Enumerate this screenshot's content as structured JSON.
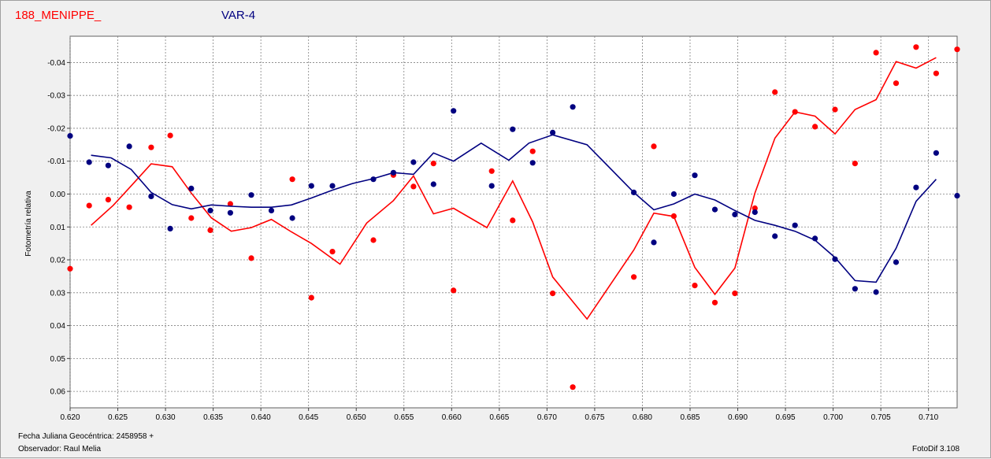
{
  "header": {
    "target_label": "188_MENIPPE_",
    "var_label": "VAR-4"
  },
  "footer": {
    "jd_label": "Fecha Juliana Geocéntrica: 2458958 +",
    "observer_label": "Observador: Raul Melia",
    "software_label": "FotoDif 3.108"
  },
  "colors": {
    "target": "#ff0000",
    "var": "#000080",
    "grid": "#808080"
  },
  "chart_data": {
    "type": "scatter",
    "ylabel": "Fotometría relativa",
    "xlim": [
      0.62,
      0.713
    ],
    "ylim": [
      -0.048,
      0.065
    ],
    "y_inverted": true,
    "grid": true,
    "x_ticks": [
      0.62,
      0.625,
      0.63,
      0.635,
      0.64,
      0.645,
      0.65,
      0.655,
      0.66,
      0.665,
      0.67,
      0.675,
      0.68,
      0.685,
      0.69,
      0.695,
      0.7,
      0.705,
      0.71
    ],
    "x_tick_labels": [
      "0.620",
      "0.625",
      "0.630",
      "0.635",
      "0.640",
      "0.645",
      "0.650",
      "0.655",
      "0.660",
      "0.665",
      "0.670",
      "0.675",
      "0.680",
      "0.685",
      "0.690",
      "0.695",
      "0.700",
      "0.705",
      "0.710"
    ],
    "y_ticks": [
      -0.04,
      -0.03,
      -0.02,
      -0.01,
      0.0,
      0.01,
      0.02,
      0.03,
      0.04,
      0.05,
      0.06
    ],
    "y_tick_labels": [
      "-0.04",
      "-0.03",
      "-0.02",
      "-0.01",
      "0.00",
      "0.01",
      "0.02",
      "0.03",
      "0.04",
      "0.05",
      "0.06"
    ],
    "series": [
      {
        "name": "188_MENIPPE_",
        "color": "#ff0000",
        "points": [
          [
            0.62,
            0.0227
          ],
          [
            0.622,
            0.0035
          ],
          [
            0.624,
            0.0017
          ],
          [
            0.6262,
            0.004
          ],
          [
            0.6285,
            -0.0142
          ],
          [
            0.6305,
            -0.0178
          ],
          [
            0.6327,
            0.0073
          ],
          [
            0.6347,
            0.011
          ],
          [
            0.6368,
            0.003
          ],
          [
            0.639,
            0.0195
          ],
          [
            0.6433,
            -0.0045
          ],
          [
            0.6453,
            0.0315
          ],
          [
            0.6475,
            0.0175
          ],
          [
            0.6518,
            0.014
          ],
          [
            0.6539,
            -0.0058
          ],
          [
            0.656,
            -0.0023
          ],
          [
            0.6581,
            -0.0093
          ],
          [
            0.6602,
            0.0293
          ],
          [
            0.6642,
            -0.007
          ],
          [
            0.6664,
            0.008
          ],
          [
            0.6685,
            -0.013
          ],
          [
            0.6706,
            0.0302
          ],
          [
            0.6727,
            0.0587
          ],
          [
            0.6791,
            0.0252
          ],
          [
            0.6812,
            -0.0145
          ],
          [
            0.6833,
            0.0067
          ],
          [
            0.6855,
            0.0278
          ],
          [
            0.6876,
            0.033
          ],
          [
            0.6897,
            0.0302
          ],
          [
            0.6918,
            0.0043
          ],
          [
            0.6939,
            -0.031
          ],
          [
            0.696,
            -0.025
          ],
          [
            0.6981,
            -0.0205
          ],
          [
            0.7002,
            -0.0257
          ],
          [
            0.7023,
            -0.0093
          ],
          [
            0.7045,
            -0.043
          ],
          [
            0.7066,
            -0.0337
          ],
          [
            0.7087,
            -0.0447
          ],
          [
            0.7108,
            -0.0367
          ],
          [
            0.713,
            -0.044
          ]
        ],
        "line": [
          [
            0.6222,
            0.0095
          ],
          [
            0.6245,
            0.0035
          ],
          [
            0.6264,
            -0.0025
          ],
          [
            0.6285,
            -0.0092
          ],
          [
            0.6307,
            -0.0083
          ],
          [
            0.6327,
            -0.0003
          ],
          [
            0.6348,
            0.0072
          ],
          [
            0.6369,
            0.0113
          ],
          [
            0.639,
            0.0102
          ],
          [
            0.6411,
            0.0077
          ],
          [
            0.6432,
            0.0115
          ],
          [
            0.6453,
            0.015
          ],
          [
            0.6483,
            0.0213
          ],
          [
            0.6511,
            0.0088
          ],
          [
            0.6539,
            0.002
          ],
          [
            0.656,
            -0.0055
          ],
          [
            0.6581,
            0.006
          ],
          [
            0.6602,
            0.0043
          ],
          [
            0.6637,
            0.0102
          ],
          [
            0.6664,
            -0.004
          ],
          [
            0.6685,
            0.0085
          ],
          [
            0.6706,
            0.0252
          ],
          [
            0.6742,
            0.038
          ],
          [
            0.6791,
            0.017
          ],
          [
            0.6812,
            0.0058
          ],
          [
            0.6833,
            0.0068
          ],
          [
            0.6855,
            0.0223
          ],
          [
            0.6876,
            0.0305
          ],
          [
            0.6897,
            0.0225
          ],
          [
            0.6918,
            -0.0003
          ],
          [
            0.6939,
            -0.017
          ],
          [
            0.696,
            -0.025
          ],
          [
            0.6981,
            -0.0237
          ],
          [
            0.7002,
            -0.0183
          ],
          [
            0.7023,
            -0.0257
          ],
          [
            0.7045,
            -0.0287
          ],
          [
            0.7066,
            -0.0403
          ],
          [
            0.7087,
            -0.0383
          ],
          [
            0.7108,
            -0.0415
          ]
        ]
      },
      {
        "name": "VAR-4",
        "color": "#000080",
        "points": [
          [
            0.62,
            -0.0177
          ],
          [
            0.622,
            -0.0097
          ],
          [
            0.624,
            -0.0087
          ],
          [
            0.6262,
            -0.0145
          ],
          [
            0.6285,
            0.0007
          ],
          [
            0.6305,
            0.0105
          ],
          [
            0.6327,
            -0.0017
          ],
          [
            0.6347,
            0.005
          ],
          [
            0.6368,
            0.0057
          ],
          [
            0.639,
            0.0003
          ],
          [
            0.6411,
            0.005
          ],
          [
            0.6433,
            0.0073
          ],
          [
            0.6453,
            -0.0025
          ],
          [
            0.6475,
            -0.0025
          ],
          [
            0.6518,
            -0.0045
          ],
          [
            0.6539,
            -0.0065
          ],
          [
            0.656,
            -0.0097
          ],
          [
            0.6581,
            -0.003
          ],
          [
            0.6602,
            -0.0253
          ],
          [
            0.6642,
            -0.0025
          ],
          [
            0.6664,
            -0.0197
          ],
          [
            0.6685,
            -0.0095
          ],
          [
            0.6706,
            -0.0187
          ],
          [
            0.6727,
            -0.0265
          ],
          [
            0.6791,
            -0.0005
          ],
          [
            0.6812,
            0.0147
          ],
          [
            0.6833,
            0.0
          ],
          [
            0.6855,
            -0.0057
          ],
          [
            0.6876,
            0.0047
          ],
          [
            0.6897,
            0.0062
          ],
          [
            0.6918,
            0.0055
          ],
          [
            0.6939,
            0.0128
          ],
          [
            0.696,
            0.0095
          ],
          [
            0.6981,
            0.0135
          ],
          [
            0.7002,
            0.0198
          ],
          [
            0.7023,
            0.0288
          ],
          [
            0.7045,
            0.0298
          ],
          [
            0.7066,
            0.0207
          ],
          [
            0.7087,
            -0.002
          ],
          [
            0.7108,
            -0.0125
          ],
          [
            0.713,
            0.0005
          ]
        ],
        "line": [
          [
            0.6222,
            -0.0118
          ],
          [
            0.6243,
            -0.011
          ],
          [
            0.6264,
            -0.0075
          ],
          [
            0.6285,
            -0.0005
          ],
          [
            0.6307,
            0.0032
          ],
          [
            0.6327,
            0.0045
          ],
          [
            0.6348,
            0.0033
          ],
          [
            0.6369,
            0.0037
          ],
          [
            0.639,
            0.004
          ],
          [
            0.6411,
            0.004
          ],
          [
            0.6432,
            0.0033
          ],
          [
            0.6453,
            0.0012
          ],
          [
            0.6475,
            -0.0012
          ],
          [
            0.6496,
            -0.0032
          ],
          [
            0.6518,
            -0.0047
          ],
          [
            0.6539,
            -0.0065
          ],
          [
            0.656,
            -0.006
          ],
          [
            0.6581,
            -0.0125
          ],
          [
            0.6602,
            -0.01
          ],
          [
            0.6631,
            -0.0155
          ],
          [
            0.666,
            -0.0103
          ],
          [
            0.6681,
            -0.0155
          ],
          [
            0.6706,
            -0.018
          ],
          [
            0.6742,
            -0.015
          ],
          [
            0.6791,
            -0.0005
          ],
          [
            0.6812,
            0.0048
          ],
          [
            0.6833,
            0.003
          ],
          [
            0.6855,
            0.0
          ],
          [
            0.6876,
            0.0018
          ],
          [
            0.6897,
            0.005
          ],
          [
            0.6918,
            0.008
          ],
          [
            0.6939,
            0.0095
          ],
          [
            0.696,
            0.0113
          ],
          [
            0.6981,
            0.014
          ],
          [
            0.7002,
            0.0193
          ],
          [
            0.7023,
            0.0263
          ],
          [
            0.7045,
            0.0268
          ],
          [
            0.7066,
            0.0165
          ],
          [
            0.7087,
            0.0022
          ],
          [
            0.7108,
            -0.0045
          ]
        ]
      }
    ]
  }
}
